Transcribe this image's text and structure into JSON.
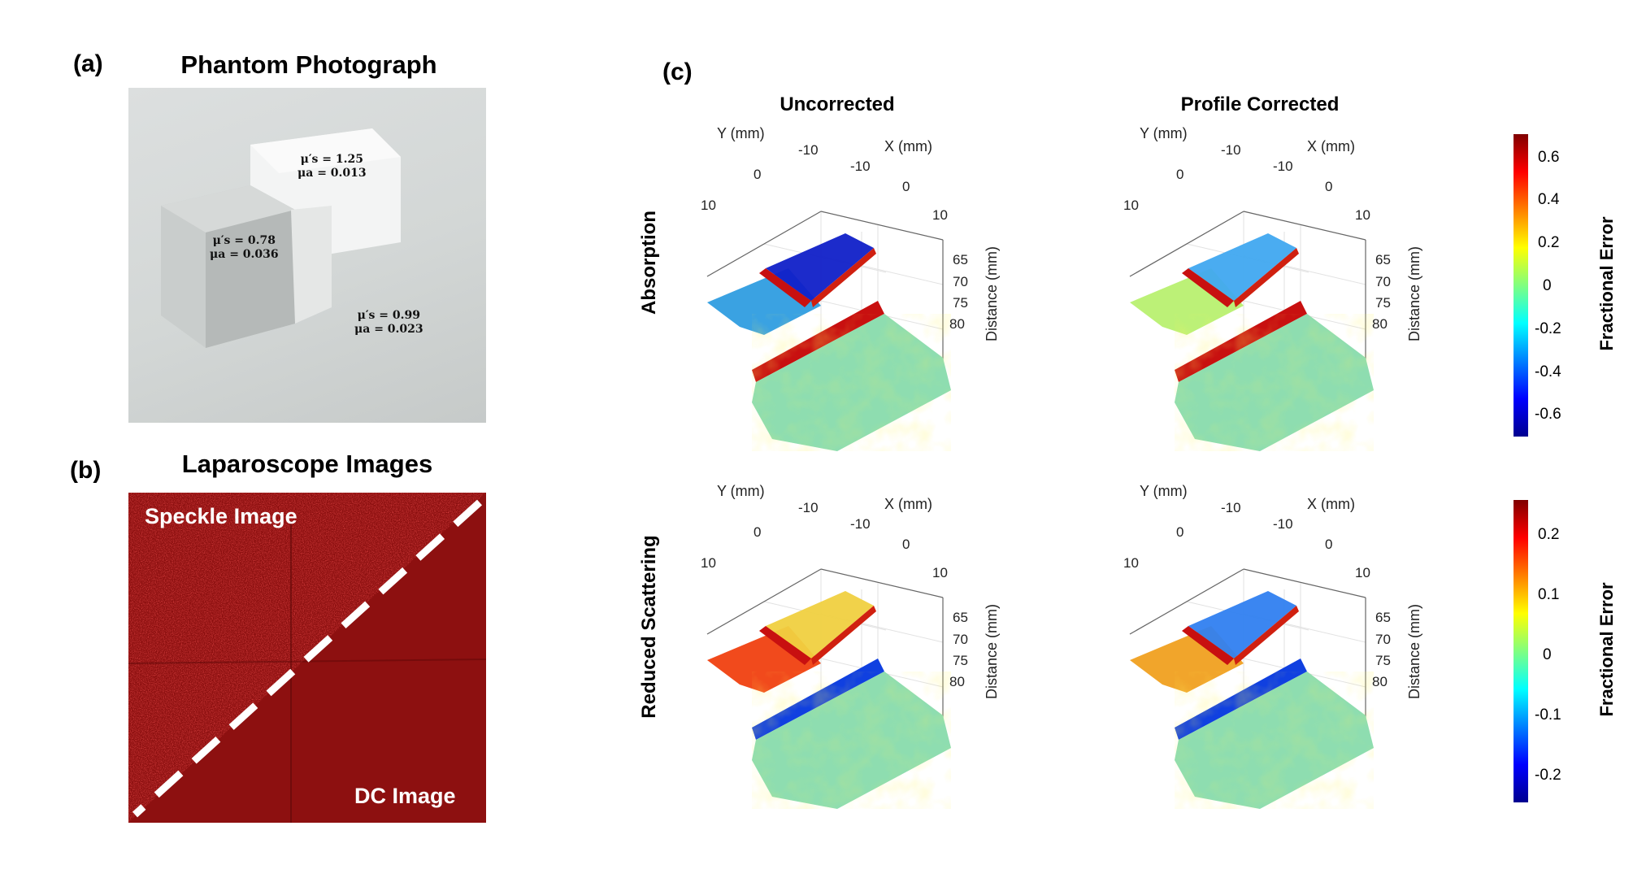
{
  "panels": {
    "a": {
      "letter": "(a)",
      "title": "Phantom Photograph",
      "blocks": [
        {
          "mus": "μ′s = 1.25",
          "mua": "μa = 0.013"
        },
        {
          "mus": "μ′s = 0.78",
          "mua": "μa = 0.036"
        },
        {
          "mus": "μ′s = 0.99",
          "mua": "μa = 0.023"
        }
      ]
    },
    "b": {
      "letter": "(b)",
      "title": "Laparoscope Images",
      "speckle_label": "Speckle Image",
      "dc_label": "DC Image"
    },
    "c": {
      "letter": "(c)",
      "col_titles": [
        "Uncorrected",
        "Profile Corrected"
      ],
      "row_titles": [
        "Absorption",
        "Reduced Scattering"
      ],
      "axes": {
        "y_label": "Y (mm)",
        "x_label": "X (mm)",
        "z_label": "Distance (mm)",
        "y_ticks": [
          "10",
          "0",
          "-10"
        ],
        "x_ticks": [
          "-10",
          "0",
          "10"
        ],
        "z_ticks": [
          "65",
          "70",
          "75",
          "80"
        ]
      },
      "colorbars": [
        {
          "label": "Fractional Error",
          "ticks": [
            "0.6",
            "0.4",
            "0.2",
            "0",
            "-0.2",
            "-0.4",
            "-0.6"
          ]
        },
        {
          "label": "Fractional Error",
          "ticks": [
            "0.2",
            "0.1",
            "0",
            "-0.1",
            "-0.2"
          ]
        }
      ],
      "colormap": [
        "#00008f",
        "#0040ff",
        "#00c0ff",
        "#40ffbf",
        "#c0ff40",
        "#ffc000",
        "#ff4000",
        "#800000"
      ]
    }
  }
}
